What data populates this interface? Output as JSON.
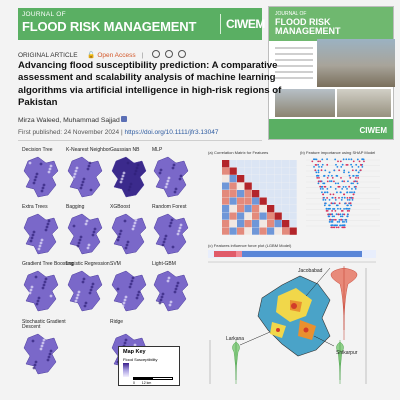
{
  "journal": {
    "name_small": "JOURNAL OF",
    "name_big": "FLOOD RISK MANAGEMENT",
    "publisher_mark": "CIWEM",
    "accent": "#5aaf63"
  },
  "cover": {
    "name_small": "JOURNAL OF",
    "name_big_1": "FLOOD RISK",
    "name_big_2": "MANAGEMENT",
    "mark": "CIWEM"
  },
  "article": {
    "type": "ORIGINAL ARTICLE",
    "access": "Open Access",
    "title": "Advancing flood susceptibility prediction: A comparative assessment and scalability analysis of machine learning algorithms via artificial intelligence in high-risk regions of Pakistan",
    "authors": "Mirza Waleed,  Muhammad Sajjad",
    "published_label": "First published: 24 November 2024",
    "doi": "https://doi.org/10.1111/jfr3.13047"
  },
  "models": [
    "Decision Tree",
    "K-Nearest Neighbor",
    "Gaussian NB",
    "MLP",
    "Extra Trees",
    "Bagging",
    "XGBoost",
    "Random Forest",
    "Gradient Tree Boosting",
    "Logistic Regression",
    "SVM",
    "Light-GBM",
    "Stochastic Gradient\nDescent",
    "Ridge"
  ],
  "map_key": {
    "title": "Map Key",
    "subtitle": "Flood Susceptibility",
    "scale_left": "0",
    "scale_right": "12 km"
  },
  "panels": {
    "a_title": "(a) Correlation Matrix for Features",
    "b_title": "(b) Feature importance using SHAP Model",
    "c_title": "(c) Features influence force plot (LGBM Model)",
    "places": [
      "Jacobabad",
      "Larkana",
      "Shikarpur"
    ]
  },
  "colors": {
    "map_fill": "#7a68c9",
    "map_dark": "#3b2a8c",
    "heat_red": "#c9463d",
    "heat_blue": "#3d6fc9"
  }
}
